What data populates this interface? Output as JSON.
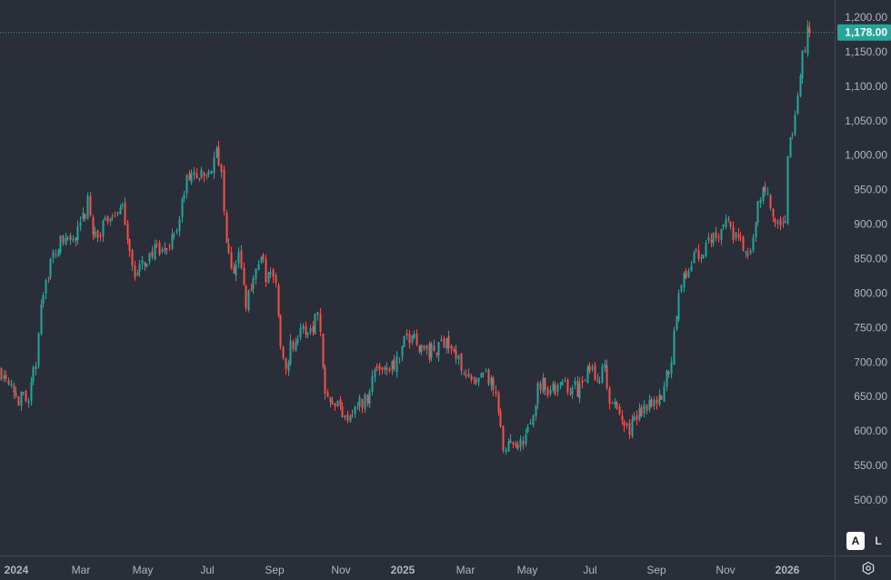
{
  "chart_data": {
    "type": "candlestick",
    "last_price": 1178,
    "last_price_label": "1,178.00",
    "y_axis": {
      "range": [
        488,
        1216
      ],
      "ticks": [
        500,
        550,
        600,
        650,
        700,
        750,
        800,
        850,
        900,
        950,
        1000,
        1050,
        1100,
        1150,
        1200
      ],
      "tick_labels": [
        "500.00",
        "550.00",
        "600.00",
        "650.00",
        "700.00",
        "750.00",
        "800.00",
        "850.00",
        "900.00",
        "950.00",
        "1,000.00",
        "1,050.00",
        "1,100.00",
        "1,150.00",
        "1,200.00"
      ]
    },
    "x_axis": {
      "labels": [
        {
          "text": "2024",
          "bold": true
        },
        {
          "text": "Mar",
          "bold": false
        },
        {
          "text": "May",
          "bold": false
        },
        {
          "text": "Jul",
          "bold": false
        },
        {
          "text": "Sep",
          "bold": false
        },
        {
          "text": "Nov",
          "bold": false
        },
        {
          "text": "2025",
          "bold": true
        },
        {
          "text": "Mar",
          "bold": false
        },
        {
          "text": "May",
          "bold": false
        },
        {
          "text": "Jul",
          "bold": false
        },
        {
          "text": "Sep",
          "bold": false
        },
        {
          "text": "Nov",
          "bold": false
        },
        {
          "text": "2026",
          "bold": true
        }
      ]
    },
    "colors": {
      "background": "#2a2e39",
      "up": "#26a69a",
      "down": "#ef5350",
      "price_badge": "#26a69a",
      "axis_text": "#b2b5be"
    },
    "grid": false,
    "close_path": [
      [
        0,
        688
      ],
      [
        10,
        680
      ],
      [
        20,
        645
      ],
      [
        30,
        650
      ],
      [
        40,
        700
      ],
      [
        44,
        790
      ],
      [
        52,
        830
      ],
      [
        62,
        865
      ],
      [
        72,
        880
      ],
      [
        82,
        875
      ],
      [
        90,
        900
      ],
      [
        96,
        930
      ],
      [
        100,
        900
      ],
      [
        108,
        880
      ],
      [
        118,
        910
      ],
      [
        128,
        920
      ],
      [
        136,
        915
      ],
      [
        142,
        870
      ],
      [
        148,
        820
      ],
      [
        156,
        840
      ],
      [
        166,
        860
      ],
      [
        178,
        855
      ],
      [
        188,
        880
      ],
      [
        196,
        900
      ],
      [
        204,
        960
      ],
      [
        214,
        975
      ],
      [
        224,
        965
      ],
      [
        232,
        985
      ],
      [
        238,
        1000
      ],
      [
        242,
        985
      ],
      [
        246,
        910
      ],
      [
        252,
        840
      ],
      [
        258,
        830
      ],
      [
        264,
        860
      ],
      [
        270,
        780
      ],
      [
        278,
        825
      ],
      [
        286,
        850
      ],
      [
        294,
        820
      ],
      [
        302,
        830
      ],
      [
        306,
        755
      ],
      [
        312,
        695
      ],
      [
        320,
        725
      ],
      [
        328,
        740
      ],
      [
        336,
        745
      ],
      [
        344,
        755
      ],
      [
        350,
        780
      ],
      [
        354,
        700
      ],
      [
        358,
        660
      ],
      [
        366,
        650
      ],
      [
        374,
        630
      ],
      [
        384,
        625
      ],
      [
        394,
        640
      ],
      [
        402,
        645
      ],
      [
        412,
        690
      ],
      [
        420,
        695
      ],
      [
        430,
        695
      ],
      [
        440,
        705
      ],
      [
        446,
        735
      ],
      [
        454,
        740
      ],
      [
        462,
        725
      ],
      [
        470,
        715
      ],
      [
        480,
        715
      ],
      [
        490,
        738
      ],
      [
        496,
        720
      ],
      [
        504,
        700
      ],
      [
        512,
        690
      ],
      [
        520,
        665
      ],
      [
        528,
        670
      ],
      [
        536,
        680
      ],
      [
        542,
        660
      ],
      [
        548,
        625
      ],
      [
        554,
        560
      ],
      [
        560,
        595
      ],
      [
        566,
        585
      ],
      [
        574,
        580
      ],
      [
        584,
        610
      ],
      [
        590,
        660
      ],
      [
        596,
        675
      ],
      [
        604,
        660
      ],
      [
        614,
        660
      ],
      [
        622,
        670
      ],
      [
        630,
        660
      ],
      [
        640,
        665
      ],
      [
        648,
        690
      ],
      [
        656,
        680
      ],
      [
        664,
        690
      ],
      [
        670,
        650
      ],
      [
        678,
        625
      ],
      [
        686,
        610
      ],
      [
        694,
        605
      ],
      [
        702,
        625
      ],
      [
        710,
        640
      ],
      [
        718,
        650
      ],
      [
        726,
        640
      ],
      [
        732,
        680
      ],
      [
        738,
        700
      ],
      [
        742,
        765
      ],
      [
        748,
        810
      ],
      [
        756,
        830
      ],
      [
        764,
        865
      ],
      [
        770,
        840
      ],
      [
        778,
        880
      ],
      [
        786,
        885
      ],
      [
        794,
        900
      ],
      [
        800,
        905
      ],
      [
        808,
        880
      ],
      [
        816,
        870
      ],
      [
        822,
        845
      ],
      [
        828,
        880
      ],
      [
        834,
        930
      ],
      [
        840,
        955
      ],
      [
        846,
        930
      ],
      [
        852,
        895
      ],
      [
        858,
        890
      ],
      [
        864,
        910
      ],
      [
        866,
        1000
      ],
      [
        870,
        1020
      ],
      [
        874,
        1065
      ],
      [
        878,
        1090
      ],
      [
        882,
        1140
      ],
      [
        888,
        1185
      ],
      [
        893,
        1178
      ]
    ]
  },
  "controls": {
    "auto_scale_label": "A",
    "log_scale_label": "L"
  }
}
